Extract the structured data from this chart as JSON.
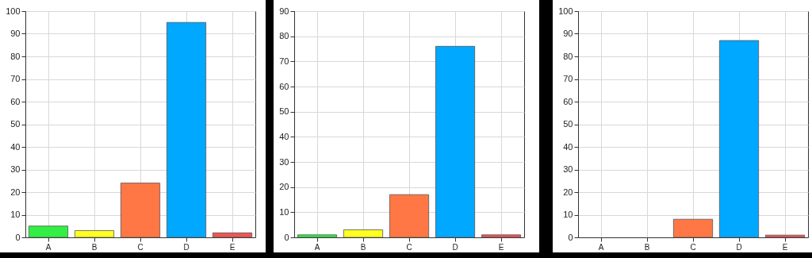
{
  "chart_data": [
    {
      "type": "bar",
      "categories": [
        "A",
        "B",
        "C",
        "D",
        "E"
      ],
      "values": [
        5,
        3,
        24,
        95,
        2
      ],
      "colors": [
        "#33ee44",
        "#ffff22",
        "#ff7744",
        "#00a8ff",
        "#ee5555"
      ],
      "ylim": [
        0,
        100
      ],
      "yticks": [
        0,
        10,
        20,
        30,
        40,
        50,
        60,
        70,
        80,
        90,
        100
      ],
      "grid": true
    },
    {
      "type": "bar",
      "categories": [
        "A",
        "B",
        "C",
        "D",
        "E"
      ],
      "values": [
        1,
        3,
        17,
        76,
        1
      ],
      "colors": [
        "#33ee44",
        "#ffff22",
        "#ff7744",
        "#00a8ff",
        "#ee5555"
      ],
      "ylim": [
        0,
        90
      ],
      "yticks": [
        0,
        10,
        20,
        30,
        40,
        50,
        60,
        70,
        80,
        90
      ],
      "grid": true
    },
    {
      "type": "bar",
      "categories": [
        "A",
        "B",
        "C",
        "D",
        "E"
      ],
      "values": [
        0,
        0,
        8,
        87,
        1
      ],
      "colors": [
        "#33ee44",
        "#ffff22",
        "#ff7744",
        "#00a8ff",
        "#ee5555"
      ],
      "ylim": [
        0,
        100
      ],
      "yticks": [
        0,
        10,
        20,
        30,
        40,
        50,
        60,
        70,
        80,
        90,
        100
      ],
      "grid": true
    }
  ]
}
